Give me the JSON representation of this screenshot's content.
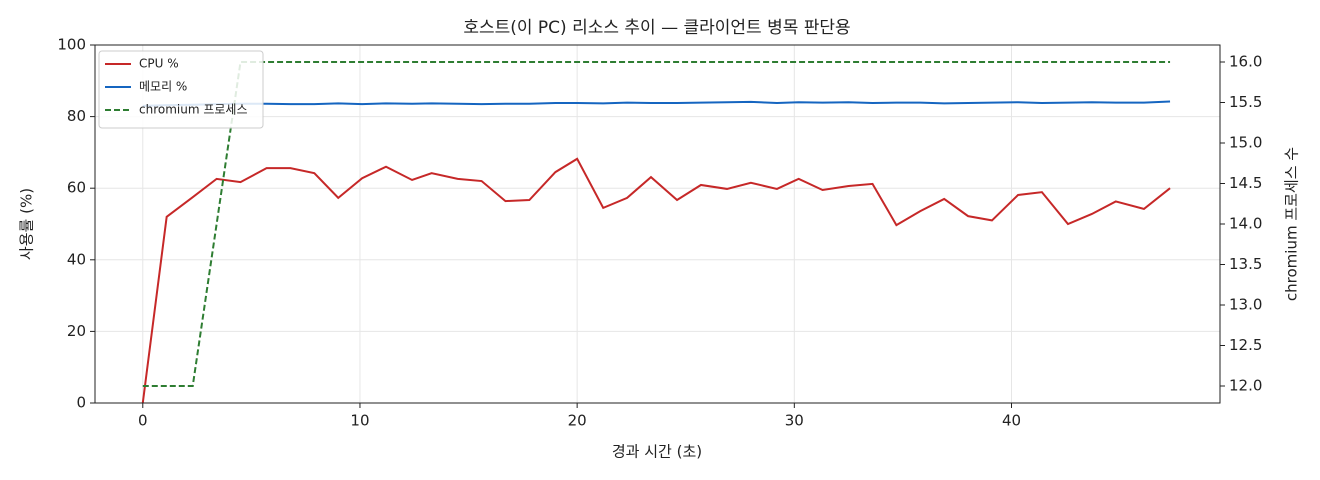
{
  "chart_data": {
    "type": "line",
    "title": "호스트(이 PC) 리소스 추이 — 클라이언트 병목 판단용",
    "x_label": "경과 시간 (초)",
    "y_label": "사용률 (%)",
    "y2_label": "chromium 프로세스 수",
    "x": [
      0,
      1.1,
      2.3,
      3.4,
      4.5,
      5.7,
      6.8,
      7.9,
      9.0,
      10.1,
      11.2,
      12.4,
      13.3,
      14.5,
      15.6,
      16.7,
      17.8,
      19.0,
      20.0,
      21.2,
      22.3,
      23.4,
      24.6,
      25.7,
      26.9,
      28.0,
      29.2,
      30.2,
      31.3,
      32.5,
      33.6,
      34.7,
      35.8,
      36.9,
      38.0,
      39.1,
      40.3,
      41.4,
      42.6,
      43.7,
      44.8,
      46.1,
      47.3
    ],
    "series": [
      {
        "name": "CPU %",
        "color": "#c62828",
        "linestyle": "solid",
        "axis": "y",
        "values": [
          0,
          52,
          57.5,
          62.6,
          61.7,
          65.6,
          65.6,
          64.2,
          57.3,
          62.8,
          66,
          62.3,
          64.2,
          62.6,
          62,
          56.4,
          56.7,
          64.5,
          68.2,
          54.5,
          57.3,
          63.1,
          56.7,
          60.9,
          59.8,
          61.5,
          59.8,
          62.6,
          59.5,
          60.6,
          61.2,
          49.7,
          53.6,
          57,
          52.2,
          51,
          58.1,
          58.9,
          50,
          52.8,
          56.3,
          54.2,
          60
        ]
      },
      {
        "name": "메모리 %",
        "color": "#1565c0",
        "linestyle": "solid",
        "axis": "y",
        "values": [
          83.0,
          83.2,
          83.3,
          83.5,
          83.6,
          83.6,
          83.5,
          83.5,
          83.7,
          83.5,
          83.7,
          83.6,
          83.7,
          83.6,
          83.5,
          83.6,
          83.6,
          83.8,
          83.8,
          83.7,
          83.9,
          83.8,
          83.8,
          83.9,
          84.0,
          84.1,
          83.8,
          84.0,
          83.9,
          84.0,
          83.8,
          83.9,
          83.9,
          83.7,
          83.8,
          83.9,
          84.0,
          83.8,
          83.9,
          84.0,
          83.9,
          83.9,
          84.2
        ]
      },
      {
        "name": "chromium 프로세스",
        "color": "#2e7d32",
        "linestyle": "dashed",
        "axis": "y2",
        "values": [
          12,
          12,
          12,
          14,
          16,
          16,
          16,
          16,
          16,
          16,
          16,
          16,
          16,
          16,
          16,
          16,
          16,
          16,
          16,
          16,
          16,
          16,
          16,
          16,
          16,
          16,
          16,
          16,
          16,
          16,
          16,
          16,
          16,
          16,
          16,
          16,
          16,
          16,
          16,
          16,
          16,
          16,
          16
        ]
      }
    ],
    "xlim": [
      -2.2,
      49.6
    ],
    "xticks": [
      0,
      10,
      20,
      30,
      40
    ],
    "ylim": [
      0,
      100
    ],
    "yticks": [
      0,
      20,
      40,
      60,
      80,
      100
    ],
    "y2lim": [
      11.79,
      16.21
    ],
    "y2ticks": [
      {
        "value": 12,
        "label": "12.0"
      },
      {
        "value": 12.5,
        "label": "12.5"
      },
      {
        "value": 13,
        "label": "13.0"
      },
      {
        "value": 13.5,
        "label": "13.5"
      },
      {
        "value": 14,
        "label": "14.0"
      },
      {
        "value": 14.5,
        "label": "14.5"
      },
      {
        "value": 15,
        "label": "15.0"
      },
      {
        "value": 15.5,
        "label": "15.5"
      },
      {
        "value": 16,
        "label": "16.0"
      }
    ],
    "grid": true,
    "legend": "upper-left"
  }
}
